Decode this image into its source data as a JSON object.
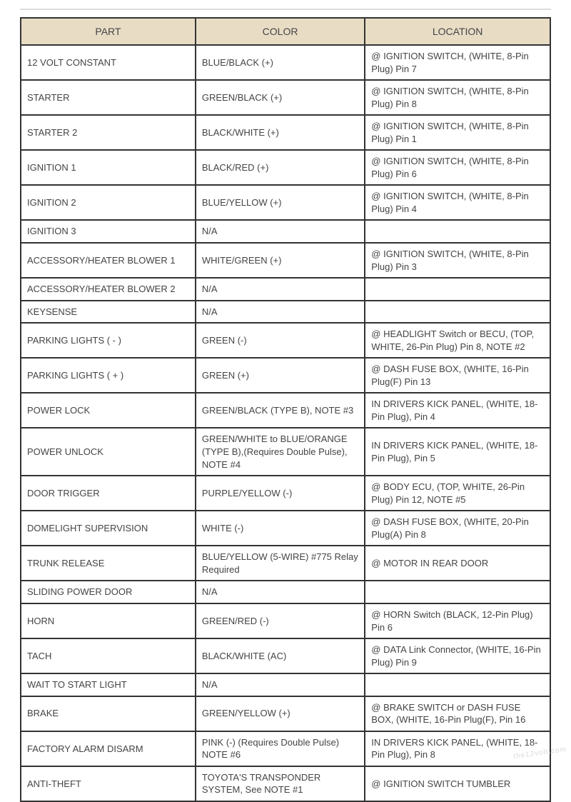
{
  "table": {
    "header_bg": "#e8dcc5",
    "border_color": "#333333",
    "text_color": "#444444",
    "font_size_header": 14,
    "font_size_cell": 13,
    "columns": [
      "PART",
      "COLOR",
      "LOCATION"
    ],
    "column_widths_pct": [
      33,
      32,
      35
    ],
    "rows": [
      {
        "part": "12 VOLT CONSTANT",
        "color": " BLUE/BLACK (+)",
        "location": " @ IGNITION SWITCH, (WHITE, 8-Pin Plug) Pin 7"
      },
      {
        "part": "STARTER",
        "color": " GREEN/BLACK (+)",
        "location": " @ IGNITION SWITCH, (WHITE, 8-Pin Plug) Pin 8"
      },
      {
        "part": "STARTER 2",
        "color": " BLACK/WHITE (+)",
        "location": " @ IGNITION SWITCH, (WHITE, 8-Pin Plug) Pin 1"
      },
      {
        "part": "IGNITION 1",
        "color": " BLACK/RED (+)",
        "location": " @ IGNITION SWITCH, (WHITE, 8-Pin Plug) Pin 6"
      },
      {
        "part": "IGNITION 2",
        "color": " BLUE/YELLOW (+)",
        "location": " @ IGNITION SWITCH, (WHITE, 8-Pin Plug) Pin 4"
      },
      {
        "part": "IGNITION 3",
        "color": " N/A",
        "location": ""
      },
      {
        "part": "ACCESSORY/HEATER BLOWER 1",
        "color": " WHITE/GREEN (+)",
        "location": " @ IGNITION SWITCH, (WHITE, 8-Pin Plug) Pin 3"
      },
      {
        "part": "ACCESSORY/HEATER BLOWER 2",
        "color": " N/A",
        "location": ""
      },
      {
        "part": "KEYSENSE",
        "color": " N/A",
        "location": ""
      },
      {
        "part": "PARKING LIGHTS ( - )",
        "color": " GREEN (-)",
        "location": "@ HEADLIGHT Switch or BECU, (TOP, WHITE, 26-Pin Plug) Pin 8, NOTE #2"
      },
      {
        "part": "PARKING LIGHTS ( + )",
        "color": " GREEN (+)",
        "location": " @ DASH FUSE BOX, (WHITE, 16-Pin Plug(F) Pin 13"
      },
      {
        "part": "POWER LOCK",
        "color": " GREEN/BLACK (TYPE B), NOTE #3",
        "location": " IN DRIVERS KICK PANEL, (WHITE, 18-Pin Plug), Pin 4"
      },
      {
        "part": "POWER UNLOCK",
        "color": " GREEN/WHITE to BLUE/ORANGE (TYPE B),(Requires Double Pulse), NOTE #4",
        "location": " IN DRIVERS KICK PANEL, (WHITE, 18-Pin Plug), Pin 5"
      },
      {
        "part": "DOOR TRIGGER",
        "color": " PURPLE/YELLOW (-)",
        "location": " @ BODY ECU, (TOP, WHITE, 26-Pin Plug) Pin 12, NOTE #5"
      },
      {
        "part": "DOMELIGHT SUPERVISION",
        "color": " WHITE (-)",
        "location": " @ DASH FUSE BOX, (WHITE, 20-Pin Plug(A) Pin 8"
      },
      {
        "part": "TRUNK RELEASE",
        "color": " BLUE/YELLOW (5-WIRE) #775 Relay Required",
        "location": " @ MOTOR IN REAR DOOR"
      },
      {
        "part": "SLIDING POWER DOOR",
        "color": " N/A",
        "location": ""
      },
      {
        "part": "HORN",
        "color": " GREEN/RED (-)",
        "location": " @ HORN Switch (BLACK, 12-Pin Plug) Pin 6"
      },
      {
        "part": "TACH",
        "color": " BLACK/WHITE (AC)",
        "location": " @ DATA Link Connector, (WHITE, 16-Pin Plug) Pin 9"
      },
      {
        "part": "WAIT TO START LIGHT",
        "color": " N/A",
        "location": ""
      },
      {
        "part": "BRAKE",
        "color": " GREEN/YELLOW (+)",
        "location": " @ BRAKE SWITCH or DASH FUSE BOX, (WHITE, 16-Pin Plug(F), Pin 16"
      },
      {
        "part": "FACTORY ALARM DISARM",
        "color": "  PINK (-) (Requires Double Pulse) NOTE #6",
        "location": " IN DRIVERS KICK PANEL, (WHITE, 18-Pin Plug), Pin 8"
      },
      {
        "part": "ANTI-THEFT",
        "color": " TOYOTA'S TRANSPONDER SYSTEM, See NOTE #1",
        "location": " @ IGNITION SWITCH TUMBLER"
      }
    ]
  },
  "watermark_text": "the12volt.com"
}
